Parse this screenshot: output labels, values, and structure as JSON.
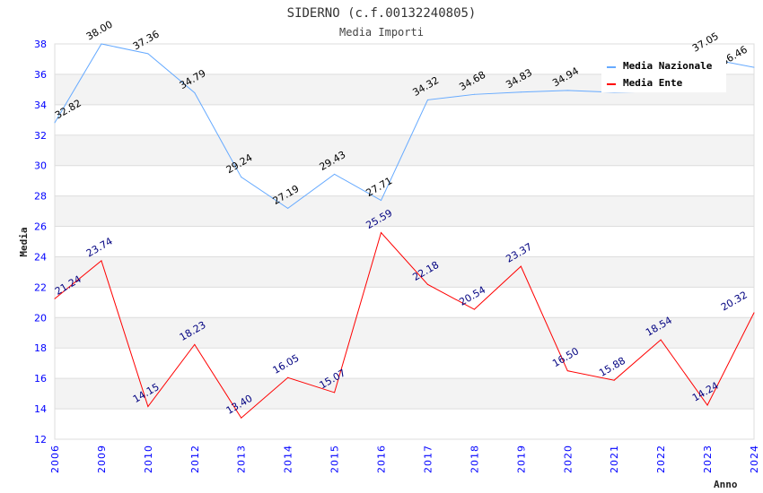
{
  "chart_data": {
    "type": "line",
    "title": "SIDERNO (c.f.00132240805)",
    "subtitle": "Media Importi",
    "xlabel": "Anno",
    "ylabel": "Media",
    "ylim": [
      12,
      38
    ],
    "yticks": [
      12,
      14,
      16,
      18,
      20,
      22,
      24,
      26,
      28,
      30,
      32,
      34,
      36,
      38
    ],
    "categories": [
      "2006",
      "2009",
      "2010",
      "2012",
      "2013",
      "2014",
      "2015",
      "2016",
      "2017",
      "2018",
      "2019",
      "2020",
      "2021",
      "2022",
      "2023",
      "2024"
    ],
    "legend_position": "top-right",
    "series": [
      {
        "name": "Media Nazionale",
        "color": "#66aaff",
        "values": [
          32.82,
          38.0,
          37.36,
          34.79,
          29.24,
          27.19,
          29.43,
          27.71,
          34.32,
          34.68,
          34.83,
          34.94,
          34.82,
          34.88,
          37.05,
          36.46
        ],
        "labels": [
          "32.82",
          "38.00",
          "37.36",
          "34.79",
          "29.24",
          "27.19",
          "29.43",
          "27.71",
          "34.32",
          "34.68",
          "34.83",
          "34.94",
          "",
          "",
          "37.05",
          "36.46"
        ]
      },
      {
        "name": "Media Ente",
        "color": "#ff0000",
        "values": [
          21.24,
          23.74,
          14.15,
          18.23,
          13.4,
          16.05,
          15.07,
          25.59,
          22.18,
          20.54,
          23.37,
          16.5,
          15.88,
          18.54,
          14.24,
          20.32
        ],
        "labels": [
          "21.24",
          "23.74",
          "14.15",
          "18.23",
          "13.40",
          "16.05",
          "15.07",
          "25.59",
          "22.18",
          "20.54",
          "23.37",
          "16.50",
          "15.88",
          "18.54",
          "14.24",
          "20.32"
        ]
      }
    ]
  }
}
